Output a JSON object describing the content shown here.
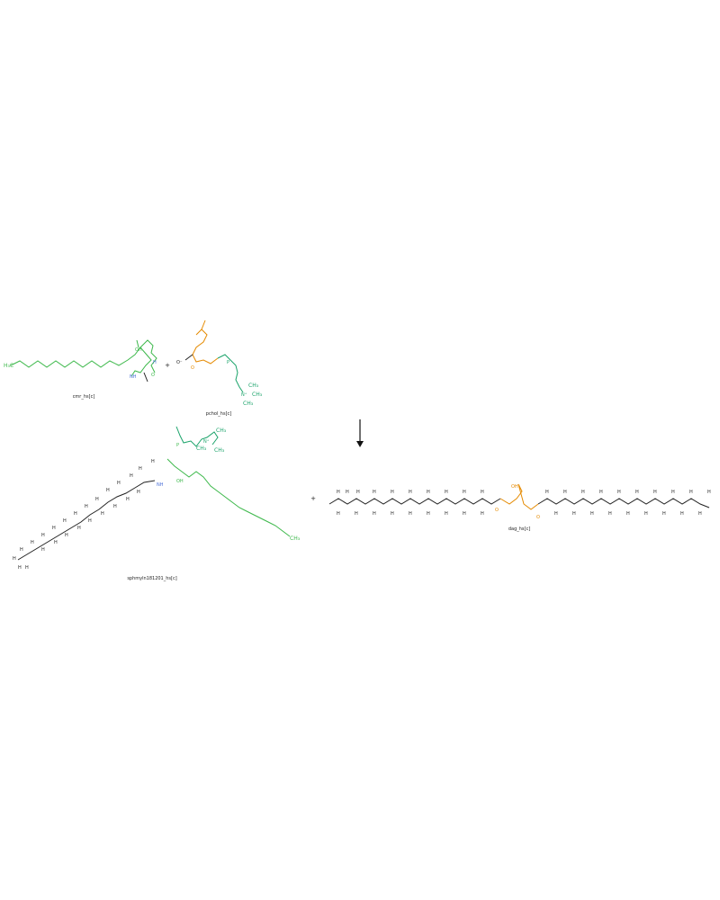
{
  "reactants": [
    {
      "name": "cmr_hs[c]"
    },
    {
      "name": "pchol_hs[c]"
    }
  ],
  "products": [
    {
      "name": "sphmyln181201_hs[c]"
    },
    {
      "name": "dag_hs[c]"
    }
  ],
  "operators": {
    "plus_top": "+",
    "plus_bottom": "+",
    "arrow": "↓"
  },
  "atom_text": {
    "h3c": "H₃C",
    "ch3": "CH₃",
    "oh": "OH",
    "nh": "NH",
    "nplus": "N⁺",
    "o": "O",
    "p": "P",
    "h": "H",
    "o_minus": "O⁻"
  },
  "colors": {
    "cer": "#3cb84a",
    "glycerol": "#e58a00",
    "choline": "#1aa36a",
    "nitrogen": "#4a6fd8",
    "bond": "#222222"
  }
}
